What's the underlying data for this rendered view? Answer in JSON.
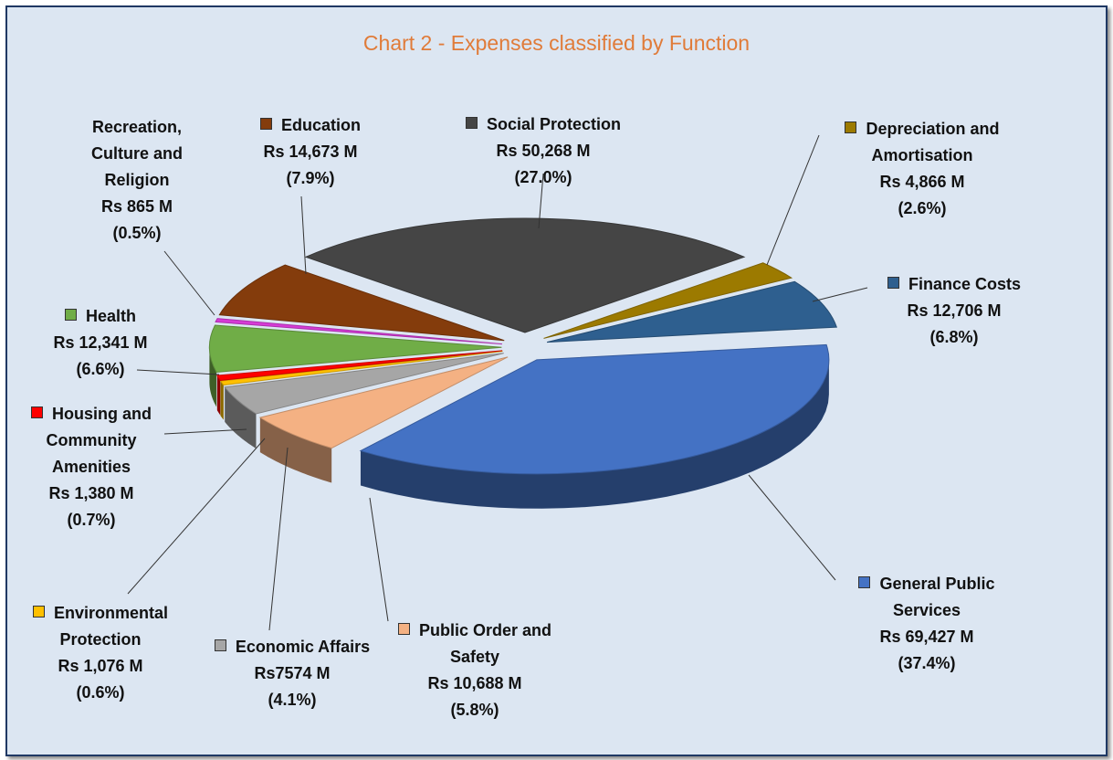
{
  "chart_data": {
    "type": "pie3d",
    "title": "Chart 2 - Expenses classified by Function",
    "categories": [
      "Social Protection",
      "Depreciation and Amortisation",
      "Finance Costs",
      "General Public Services",
      "Public Order and Safety",
      "Economic Affairs",
      "Environmental Protection",
      "Housing and Community Amenities",
      "Health",
      "Recreation, Culture and Religion",
      "Education"
    ],
    "values": [
      50268,
      4866,
      12706,
      69427,
      10688,
      7574,
      1076,
      1380,
      12341,
      865,
      14673
    ],
    "value_labels": [
      "Rs 50,268 M",
      "Rs 4,866 M",
      "Rs 12,706 M",
      "Rs 69,427 M",
      "Rs 10,688 M",
      "Rs7574 M",
      "Rs 1,076 M",
      "Rs 1,380 M",
      "Rs 12,341 M",
      "Rs 865 M",
      "Rs 14,673 M"
    ],
    "shares": [
      27.0,
      2.6,
      6.8,
      37.4,
      5.8,
      4.1,
      0.6,
      0.7,
      6.6,
      0.5,
      7.9
    ],
    "share_labels": [
      "(27.0%)",
      "(2.6%)",
      "(6.8%)",
      "(37.4%)",
      "(5.8%)",
      "(4.1%)",
      "(0.6%)",
      "(0.7%)",
      "(6.6%)",
      "(0.5%)",
      "(7.9%)"
    ],
    "colors": [
      "#454545",
      "#9c7a00",
      "#2e5f8f",
      "#4472c4",
      "#f4b183",
      "#a6a6a6",
      "#ffc000",
      "#ff0000",
      "#70ad47",
      "#d63bd6",
      "#843c0c"
    ]
  }
}
